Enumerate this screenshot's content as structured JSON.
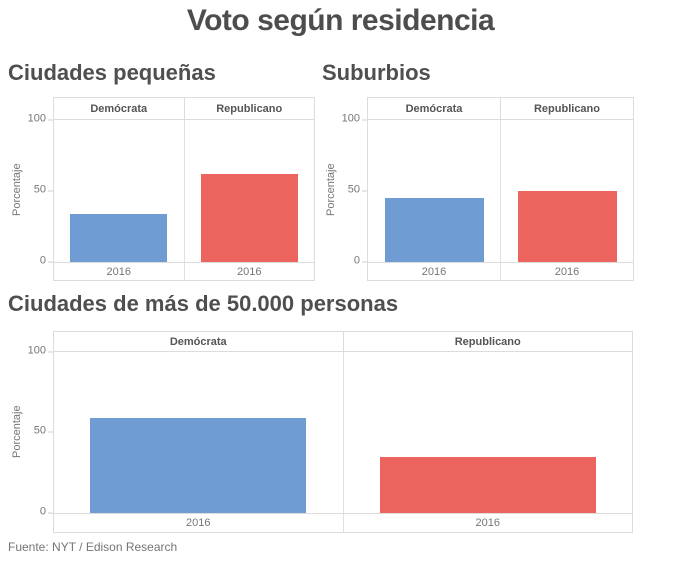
{
  "page_title": "Voto según residencia",
  "footer": {
    "source": "Fuente: NYT / Edison Research"
  },
  "colors": {
    "democrat_blue": "#6f9cd2",
    "republican_red": "#eb655e",
    "border_gray": "#dcdcdc"
  },
  "chart_data": [
    {
      "type": "bar",
      "title": "Ciudades pequeñas",
      "ylabel": "Porcentaje",
      "yticks": [
        0,
        50,
        100
      ],
      "ylim": [
        0,
        100
      ],
      "x": "2016",
      "grid": false,
      "series": [
        {
          "name": "Demócrata",
          "value": 34,
          "color": "#6f9cd2"
        },
        {
          "name": "Republicano",
          "value": 62,
          "color": "#eb655e"
        }
      ]
    },
    {
      "type": "bar",
      "title": "Suburbios",
      "ylabel": "Porcentaje",
      "yticks": [
        0,
        50,
        100
      ],
      "ylim": [
        0,
        100
      ],
      "x": "2016",
      "grid": false,
      "series": [
        {
          "name": "Demócrata",
          "value": 45,
          "color": "#6f9cd2"
        },
        {
          "name": "Republicano",
          "value": 50,
          "color": "#eb655e"
        }
      ]
    },
    {
      "type": "bar",
      "title": "Ciudades de más de 50.000 personas",
      "ylabel": "Porcentaje",
      "yticks": [
        0,
        50,
        100
      ],
      "ylim": [
        0,
        100
      ],
      "x": "2016",
      "grid": false,
      "series": [
        {
          "name": "Demócrata",
          "value": 59,
          "color": "#6f9cd2"
        },
        {
          "name": "Republicano",
          "value": 35,
          "color": "#eb655e"
        }
      ]
    }
  ]
}
